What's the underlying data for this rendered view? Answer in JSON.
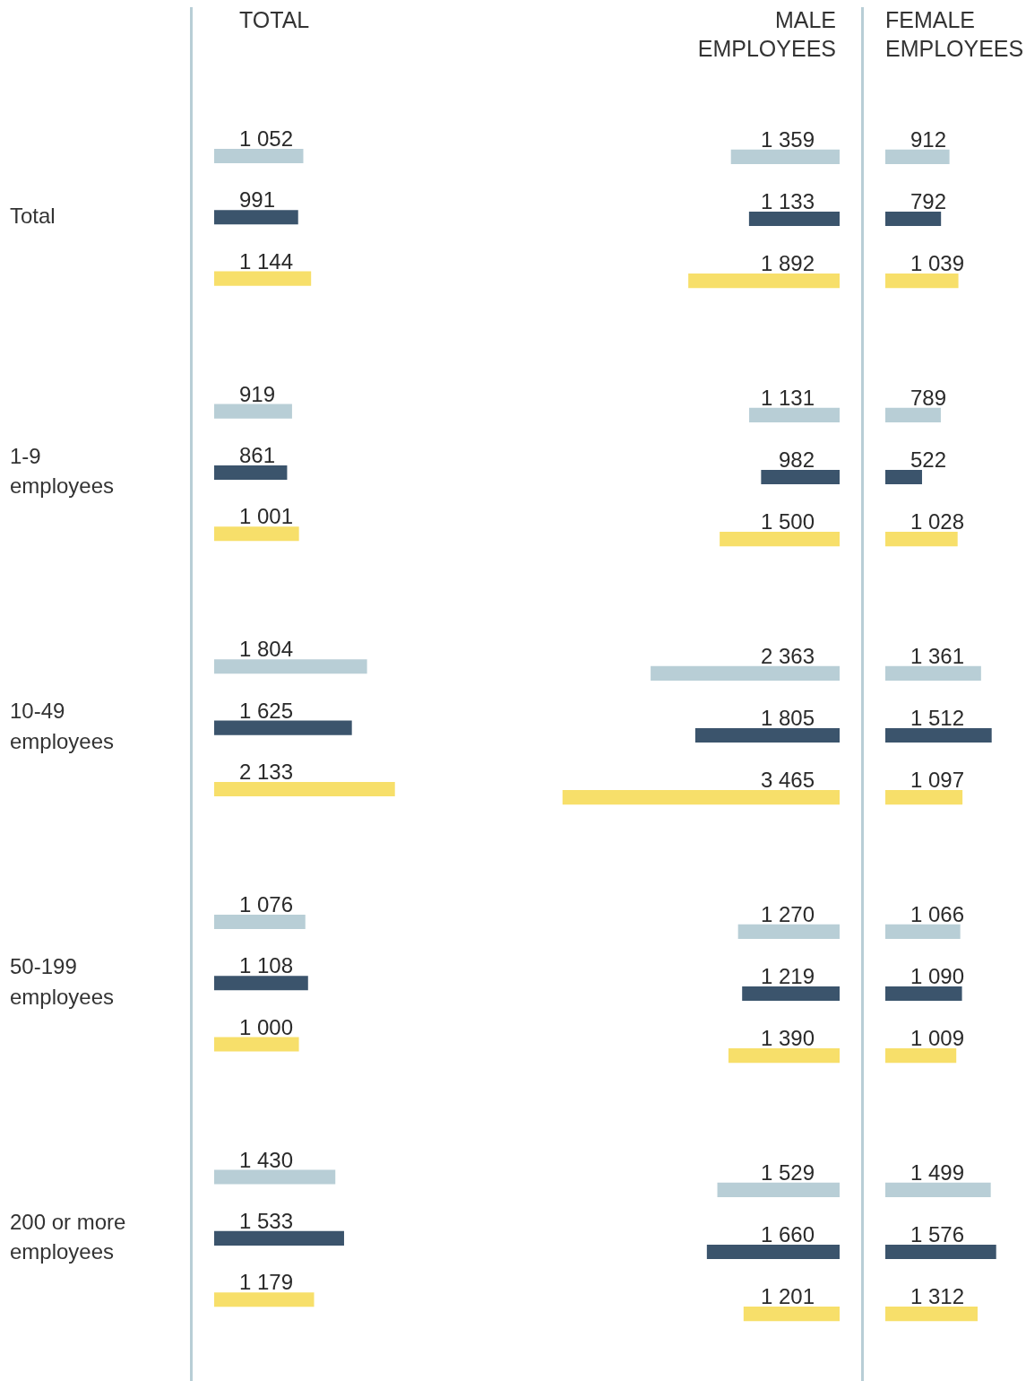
{
  "chart_data": [
    {
      "type": "bar",
      "orientation": "horizontal",
      "title": "TOTAL",
      "categories": [
        "Total",
        "1-9 employees",
        "10-49 employees",
        "50-199 employees",
        "200 or more employees"
      ],
      "tick_labels": "y",
      "grid": false,
      "legend": false,
      "series": [
        {
          "color": "#b8ced6",
          "values": [
            1052,
            919,
            1804,
            1076,
            1430
          ],
          "value_labels": [
            "1 052",
            "919",
            "1 804",
            "1 076",
            "1 430"
          ]
        },
        {
          "color": "#3b546c",
          "values": [
            991,
            861,
            1625,
            1108,
            1533
          ],
          "value_labels": [
            "991",
            "861",
            "1 625",
            "1 108",
            "1 533"
          ]
        },
        {
          "color": "#f7df6a",
          "values": [
            1144,
            1001,
            2133,
            1000,
            1179
          ],
          "value_labels": [
            "1 144",
            "1 001",
            "2 133",
            "1 000",
            "1 179"
          ]
        }
      ]
    },
    {
      "type": "bar",
      "orientation": "horizontal",
      "title": "MALE EMPLOYEES",
      "categories": [
        null,
        null,
        null,
        null,
        null
      ],
      "tick_labels": false,
      "grid": false,
      "legend": false,
      "series": [
        {
          "color": "#b8ced6",
          "values": [
            1359,
            1131,
            2363,
            1270,
            1529
          ],
          "value_labels": [
            "1 359",
            "1 131",
            "2 363",
            "1 270",
            "1 529"
          ]
        },
        {
          "color": "#3b546c",
          "values": [
            1133,
            982,
            1805,
            1219,
            1660
          ],
          "value_labels": [
            "1 133",
            "982",
            "1 805",
            "1 219",
            "1 660"
          ]
        },
        {
          "color": "#f7df6a",
          "values": [
            1892,
            1500,
            3465,
            1390,
            1201
          ],
          "value_labels": [
            "1 892",
            "1 500",
            "3 465",
            "1 390",
            "1 201"
          ]
        }
      ]
    },
    {
      "type": "bar",
      "orientation": "horizontal",
      "title": "FEMALE EMPLOYEES",
      "categories": [
        null,
        null,
        null,
        null,
        null
      ],
      "tick_labels": false,
      "grid": false,
      "legend": false,
      "series": [
        {
          "color": "#b8ced6",
          "values": [
            912,
            789,
            1361,
            1066,
            1499
          ],
          "value_labels": [
            "912",
            "789",
            "1 361",
            "1 066",
            "1 499"
          ]
        },
        {
          "color": "#3b546c",
          "values": [
            792,
            522,
            1512,
            1090,
            1576
          ],
          "value_labels": [
            "792",
            "522",
            "1 512",
            "1 090",
            "1 576"
          ]
        },
        {
          "color": "#f7df6a",
          "values": [
            1039,
            1028,
            1097,
            1009,
            1312
          ],
          "value_labels": [
            "1 039",
            "1 028",
            "1 097",
            "1 009",
            "1 312"
          ]
        }
      ]
    }
  ]
}
